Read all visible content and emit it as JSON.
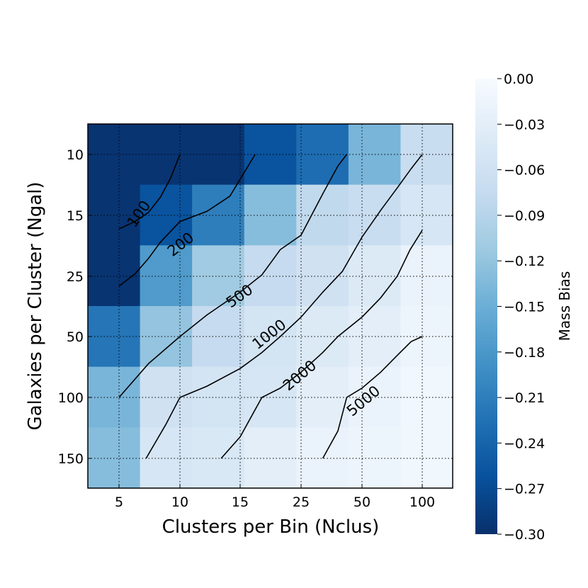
{
  "chart_data": {
    "type": "heatmap",
    "xlabel": "Clusters per Bin (Nclus)",
    "ylabel": "Galaxies per Cluster (Ngal)",
    "x_ticks": [
      "5",
      "10",
      "15",
      "25",
      "50",
      "100"
    ],
    "y_ticks": [
      "10",
      "15",
      "25",
      "50",
      "100",
      "150"
    ],
    "grid": true,
    "colorbar": {
      "label": "Mass Bias",
      "range": [
        -0.3,
        0.0
      ],
      "colormap": "Blues_r",
      "ticks": [
        "0.00",
        "−0.03",
        "−0.06",
        "−0.09",
        "−0.12",
        "−0.15",
        "−0.18",
        "−0.21",
        "−0.24",
        "−0.27",
        "−0.30"
      ]
    },
    "cells": [
      [
        -0.295,
        -0.295,
        -0.295,
        -0.26,
        -0.23,
        -0.14,
        -0.07
      ],
      [
        -0.295,
        -0.295,
        -0.295,
        -0.26,
        -0.23,
        -0.14,
        -0.07
      ],
      [
        -0.295,
        -0.26,
        -0.21,
        -0.13,
        -0.08,
        -0.07,
        -0.05
      ],
      [
        -0.295,
        -0.26,
        -0.21,
        -0.13,
        -0.08,
        -0.07,
        -0.05
      ],
      [
        -0.295,
        -0.175,
        -0.11,
        -0.075,
        -0.06,
        -0.04,
        -0.02
      ],
      [
        -0.295,
        -0.175,
        -0.11,
        -0.075,
        -0.06,
        -0.04,
        -0.02
      ],
      [
        -0.22,
        -0.12,
        -0.075,
        -0.055,
        -0.04,
        -0.03,
        -0.015
      ],
      [
        -0.22,
        -0.12,
        -0.075,
        -0.055,
        -0.04,
        -0.03,
        -0.015
      ],
      [
        -0.14,
        -0.06,
        -0.055,
        -0.05,
        -0.03,
        -0.02,
        -0.01
      ],
      [
        -0.14,
        -0.06,
        -0.055,
        -0.05,
        -0.03,
        -0.02,
        -0.01
      ],
      [
        -0.13,
        -0.05,
        -0.045,
        -0.03,
        -0.02,
        -0.015,
        -0.01
      ],
      [
        -0.13,
        -0.05,
        -0.045,
        -0.03,
        -0.02,
        -0.015,
        -0.01
      ]
    ],
    "contours": [
      {
        "level": "100",
        "points": [
          [
            5,
            16.8
          ],
          [
            6,
            15.8
          ],
          [
            7,
            14.7
          ],
          [
            8,
            13.3
          ],
          [
            9,
            11.7
          ],
          [
            10,
            10
          ]
        ]
      },
      {
        "level": "200",
        "points": [
          [
            5,
            28
          ],
          [
            6,
            24.5
          ],
          [
            7,
            21.5
          ],
          [
            8,
            18.8
          ],
          [
            10,
            15.8
          ],
          [
            12,
            14.6
          ],
          [
            14,
            13.2
          ],
          [
            17,
            10
          ]
        ]
      },
      {
        "level": "500",
        "points": [
          [
            5,
            100
          ],
          [
            7,
            68
          ],
          [
            10,
            50
          ],
          [
            12,
            39
          ],
          [
            15,
            30
          ],
          [
            18,
            24.7
          ],
          [
            21,
            20
          ],
          [
            25,
            17.7
          ],
          [
            32,
            13
          ],
          [
            38,
            10.8
          ],
          [
            42,
            10
          ]
        ]
      },
      {
        "level": "1000",
        "points": [
          [
            6.8,
            150
          ],
          [
            8.5,
            120
          ],
          [
            10,
            100
          ],
          [
            12,
            88
          ],
          [
            15,
            72
          ],
          [
            18,
            60
          ],
          [
            21,
            50
          ],
          [
            25,
            40
          ],
          [
            32,
            30
          ],
          [
            40,
            24
          ],
          [
            50,
            18
          ],
          [
            62,
            14.5
          ],
          [
            75,
            12.5
          ],
          [
            88,
            11
          ],
          [
            100,
            10
          ]
        ]
      },
      {
        "level": "2000",
        "points": [
          [
            13.2,
            150
          ],
          [
            15,
            130
          ],
          [
            18,
            100
          ],
          [
            21,
            90
          ],
          [
            25,
            75
          ],
          [
            32,
            60
          ],
          [
            38,
            50
          ],
          [
            50,
            40
          ],
          [
            62,
            32
          ],
          [
            75,
            25
          ],
          [
            87,
            20
          ],
          [
            100,
            17
          ]
        ]
      },
      {
        "level": "5000",
        "points": [
          [
            32,
            150
          ],
          [
            38,
            125
          ],
          [
            42,
            100
          ],
          [
            50,
            90
          ],
          [
            62,
            75
          ],
          [
            75,
            62
          ],
          [
            88,
            53
          ],
          [
            100,
            50
          ]
        ]
      }
    ]
  }
}
